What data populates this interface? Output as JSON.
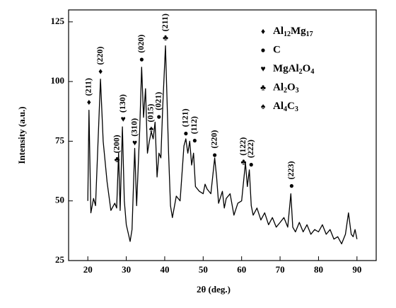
{
  "chart_data": {
    "type": "line",
    "xlabel": "2θ (deg.)",
    "ylabel": "Intensity (a.u.)",
    "xlim": [
      15,
      95
    ],
    "ylim": [
      25,
      130
    ],
    "xticks": [
      20,
      30,
      40,
      50,
      60,
      70,
      80,
      90
    ],
    "yticks": [
      25,
      50,
      75,
      100,
      125
    ],
    "x": [
      20,
      20.3,
      20.8,
      21.5,
      22,
      23.3,
      24,
      25,
      26,
      27,
      27.5,
      28,
      28.4,
      29,
      29.5,
      30,
      31,
      31.5,
      32.2,
      32.7,
      33.5,
      34,
      34.5,
      35,
      35.5,
      36,
      36.5,
      37,
      37.5,
      38,
      38.5,
      39,
      39.5,
      40.2,
      41,
      41.5,
      42,
      43,
      44,
      45,
      45.5,
      46,
      46.5,
      47,
      47.5,
      48,
      49,
      50,
      50.5,
      51,
      52,
      53,
      53.5,
      54,
      55,
      55.5,
      56,
      57,
      58,
      59,
      60,
      61,
      61.5,
      62,
      62.5,
      63,
      64,
      65,
      66,
      67,
      68,
      69,
      70,
      71,
      72,
      72.8,
      73.3,
      74,
      75,
      76,
      77,
      78,
      79,
      80,
      81,
      82,
      83,
      84,
      85,
      86,
      87,
      87.8,
      88.5,
      89,
      89.5,
      90
    ],
    "series": [
      {
        "color": "#000000",
        "values": [
          50,
          88,
          45,
          51,
          48,
          101,
          75,
          58,
          46,
          49,
          47,
          70,
          46,
          81,
          50,
          40,
          33,
          38,
          72,
          48,
          80,
          106,
          85,
          97,
          70,
          75,
          79,
          76,
          83,
          60,
          70,
          68,
          90,
          115,
          70,
          48,
          43,
          52,
          50,
          73,
          76,
          70,
          75,
          65,
          70,
          56,
          54,
          53,
          57,
          55,
          53,
          68,
          60,
          49,
          54,
          47,
          51,
          53,
          44,
          49,
          50,
          66,
          56,
          63,
          48,
          44,
          47,
          42,
          45,
          40,
          43,
          39,
          41,
          43,
          39,
          53,
          39,
          37,
          41,
          37,
          40,
          36,
          38,
          37,
          40,
          36,
          38,
          34,
          35,
          32,
          36,
          45,
          36,
          35,
          38,
          34
        ]
      }
    ],
    "legend": [
      {
        "symbol": "♦",
        "name": "Al12Mg17"
      },
      {
        "symbol": "●",
        "name": "C"
      },
      {
        "symbol": "♥",
        "name": "MgAl2O4"
      },
      {
        "symbol": "♣",
        "name": "Al2O3"
      },
      {
        "symbol": "♠",
        "name": "Al4C3"
      }
    ],
    "annotations": [
      {
        "x": 20.3,
        "y": 91,
        "symbol": "♦",
        "label": "(211)"
      },
      {
        "x": 23.3,
        "y": 104,
        "symbol": "♦",
        "label": "(220)"
      },
      {
        "x": 27.6,
        "y": 67,
        "symbol": "♣",
        "label": "(200)"
      },
      {
        "x": 29.2,
        "y": 84,
        "symbol": "♥",
        "label": "(130)"
      },
      {
        "x": 32.2,
        "y": 74,
        "symbol": "♥",
        "label": "(310)"
      },
      {
        "x": 34,
        "y": 109,
        "symbol": "●",
        "label": "(020)"
      },
      {
        "x": 36.5,
        "y": 80,
        "symbol": "♠",
        "label": "(015)"
      },
      {
        "x": 38.5,
        "y": 85,
        "symbol": "●",
        "label": "(021)"
      },
      {
        "x": 40.2,
        "y": 118,
        "symbol": "♣",
        "label": "(211)"
      },
      {
        "x": 45.5,
        "y": 78,
        "symbol": "●",
        "label": "(121)"
      },
      {
        "x": 47.8,
        "y": 75,
        "symbol": "●",
        "label": "(112)"
      },
      {
        "x": 53,
        "y": 69,
        "symbol": "●",
        "label": "(220)"
      },
      {
        "x": 60.5,
        "y": 66,
        "symbol": "♣",
        "label": "(122)"
      },
      {
        "x": 62.5,
        "y": 65,
        "symbol": "●",
        "label": "(222)"
      },
      {
        "x": 73,
        "y": 56,
        "symbol": "●",
        "label": "(223)"
      }
    ]
  }
}
